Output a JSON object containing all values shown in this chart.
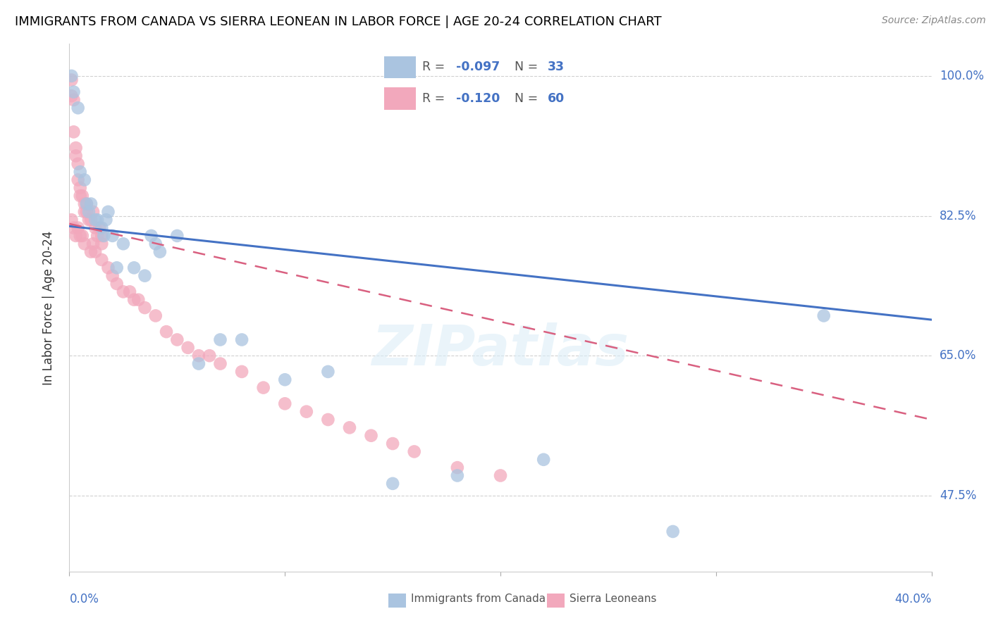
{
  "title": "IMMIGRANTS FROM CANADA VS SIERRA LEONEAN IN LABOR FORCE | AGE 20-24 CORRELATION CHART",
  "source": "Source: ZipAtlas.com",
  "ylabel": "In Labor Force | Age 20-24",
  "legend_label_canada": "Immigrants from Canada",
  "legend_label_sl": "Sierra Leoneans",
  "ytick_labels": [
    "100.0%",
    "82.5%",
    "65.0%",
    "47.5%"
  ],
  "ytick_values": [
    1.0,
    0.825,
    0.65,
    0.475
  ],
  "xmin": 0.0,
  "xmax": 0.4,
  "ymin": 0.38,
  "ymax": 1.04,
  "canada_R": "-0.097",
  "canada_N": "33",
  "sl_R": "-0.120",
  "sl_N": "60",
  "canada_color": "#aac4e0",
  "sl_color": "#f2a8bc",
  "canada_line_color": "#4472c4",
  "sl_line_color": "#d96080",
  "watermark": "ZIPatlas",
  "canada_x": [
    0.001,
    0.002,
    0.004,
    0.005,
    0.007,
    0.008,
    0.009,
    0.01,
    0.012,
    0.013,
    0.015,
    0.016,
    0.017,
    0.018,
    0.02,
    0.022,
    0.025,
    0.03,
    0.035,
    0.038,
    0.04,
    0.042,
    0.05,
    0.06,
    0.07,
    0.08,
    0.1,
    0.12,
    0.15,
    0.18,
    0.22,
    0.28,
    0.35
  ],
  "canada_y": [
    1.0,
    0.98,
    0.96,
    0.88,
    0.87,
    0.84,
    0.83,
    0.84,
    0.82,
    0.82,
    0.81,
    0.8,
    0.82,
    0.83,
    0.8,
    0.76,
    0.79,
    0.76,
    0.75,
    0.8,
    0.79,
    0.78,
    0.8,
    0.64,
    0.67,
    0.67,
    0.62,
    0.63,
    0.49,
    0.5,
    0.52,
    0.43,
    0.7
  ],
  "sl_x": [
    0.001,
    0.001,
    0.002,
    0.002,
    0.003,
    0.003,
    0.004,
    0.004,
    0.005,
    0.005,
    0.006,
    0.007,
    0.007,
    0.008,
    0.008,
    0.009,
    0.01,
    0.011,
    0.012,
    0.013,
    0.014,
    0.015,
    0.015,
    0.001,
    0.002,
    0.003,
    0.004,
    0.005,
    0.006,
    0.007,
    0.01,
    0.011,
    0.012,
    0.015,
    0.018,
    0.02,
    0.022,
    0.025,
    0.028,
    0.03,
    0.032,
    0.035,
    0.04,
    0.045,
    0.05,
    0.055,
    0.06,
    0.065,
    0.07,
    0.08,
    0.09,
    0.1,
    0.11,
    0.12,
    0.13,
    0.14,
    0.15,
    0.16,
    0.18,
    0.2
  ],
  "sl_y": [
    0.995,
    0.975,
    0.97,
    0.93,
    0.91,
    0.9,
    0.89,
    0.87,
    0.86,
    0.85,
    0.85,
    0.84,
    0.83,
    0.84,
    0.83,
    0.82,
    0.82,
    0.83,
    0.81,
    0.8,
    0.81,
    0.8,
    0.79,
    0.82,
    0.81,
    0.8,
    0.81,
    0.8,
    0.8,
    0.79,
    0.78,
    0.79,
    0.78,
    0.77,
    0.76,
    0.75,
    0.74,
    0.73,
    0.73,
    0.72,
    0.72,
    0.71,
    0.7,
    0.68,
    0.67,
    0.66,
    0.65,
    0.65,
    0.64,
    0.63,
    0.61,
    0.59,
    0.58,
    0.57,
    0.56,
    0.55,
    0.54,
    0.53,
    0.51,
    0.5
  ],
  "canada_trend_x": [
    0.0,
    0.4
  ],
  "canada_trend_y": [
    0.812,
    0.695
  ],
  "sl_trend_x": [
    0.0,
    0.4
  ],
  "sl_trend_y": [
    0.815,
    0.57
  ]
}
